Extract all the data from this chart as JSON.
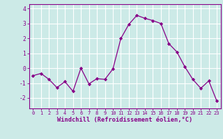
{
  "x": [
    0,
    1,
    2,
    3,
    4,
    5,
    6,
    7,
    8,
    9,
    10,
    11,
    12,
    13,
    14,
    15,
    16,
    17,
    18,
    19,
    20,
    21,
    22,
    23
  ],
  "y": [
    -0.5,
    -0.35,
    -0.75,
    -1.3,
    -0.9,
    -1.55,
    0.0,
    -1.05,
    -0.7,
    -0.75,
    -0.05,
    2.0,
    2.95,
    3.55,
    3.35,
    3.2,
    3.0,
    1.65,
    1.1,
    0.1,
    -0.75,
    -1.35,
    -0.85,
    -2.2
  ],
  "line_color": "#880088",
  "marker_color": "#880088",
  "bg_color": "#cceae7",
  "grid_color": "#ffffff",
  "xlabel": "Windchill (Refroidissement éolien,°C)",
  "ylim": [
    -2.7,
    4.3
  ],
  "xlim": [
    -0.5,
    23.5
  ],
  "yticks": [
    -2,
    -1,
    0,
    1,
    2,
    3,
    4
  ],
  "xticks": [
    0,
    1,
    2,
    3,
    4,
    5,
    6,
    7,
    8,
    9,
    10,
    11,
    12,
    13,
    14,
    15,
    16,
    17,
    18,
    19,
    20,
    21,
    22,
    23
  ],
  "xlabel_color": "#880088",
  "tick_color": "#880088",
  "axis_color": "#880088"
}
